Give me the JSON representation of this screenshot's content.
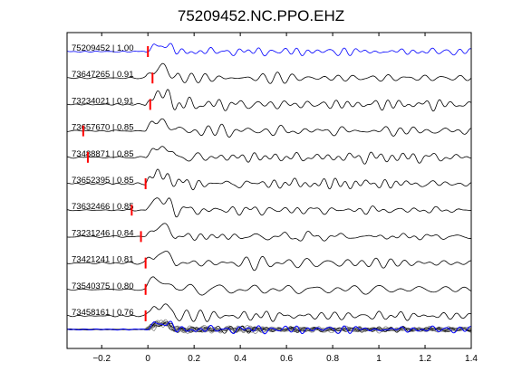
{
  "chart_data": {
    "type": "line",
    "title": "75209452.NC.PPO.EHZ",
    "xlabel": "",
    "ylabel": "",
    "xlim": [
      -0.35,
      1.4
    ],
    "xticks": [
      -0.2,
      0,
      0.2,
      0.4,
      0.6,
      0.8,
      1,
      1.2,
      1.4
    ],
    "xtick_labels": [
      "−0.2",
      "0",
      "0.2",
      "0.4",
      "0.6",
      "0.8",
      "1",
      "1.2",
      "1.4"
    ],
    "grid": false,
    "colors": {
      "reference": "#0000ff",
      "trace": "#000000",
      "pick": "#ff0000",
      "stack_background": "#808080"
    },
    "traces": [
      {
        "label": "75209452 | 1.00",
        "pick_time": 0.0,
        "reference": true,
        "seed": 1
      },
      {
        "label": "73647265 | 0.91",
        "pick_time": 0.02,
        "seed": 2
      },
      {
        "label": "73234021 | 0.91",
        "pick_time": 0.01,
        "seed": 3
      },
      {
        "label": "73657670 | 0.85",
        "pick_time": -0.28,
        "seed": 4
      },
      {
        "label": "73488871 | 0.85",
        "pick_time": -0.26,
        "seed": 5
      },
      {
        "label": "73652395 | 0.85",
        "pick_time": -0.01,
        "seed": 6
      },
      {
        "label": "73632466 | 0.85",
        "pick_time": -0.07,
        "seed": 7
      },
      {
        "label": "73231246 | 0.84",
        "pick_time": -0.03,
        "seed": 8
      },
      {
        "label": "73421241 | 0.81",
        "pick_time": -0.01,
        "seed": 9
      },
      {
        "label": "73540375 | 0.80",
        "pick_time": -0.01,
        "seed": 10
      },
      {
        "label": "73458161 | 0.76",
        "pick_time": -0.01,
        "seed": 11
      }
    ]
  }
}
